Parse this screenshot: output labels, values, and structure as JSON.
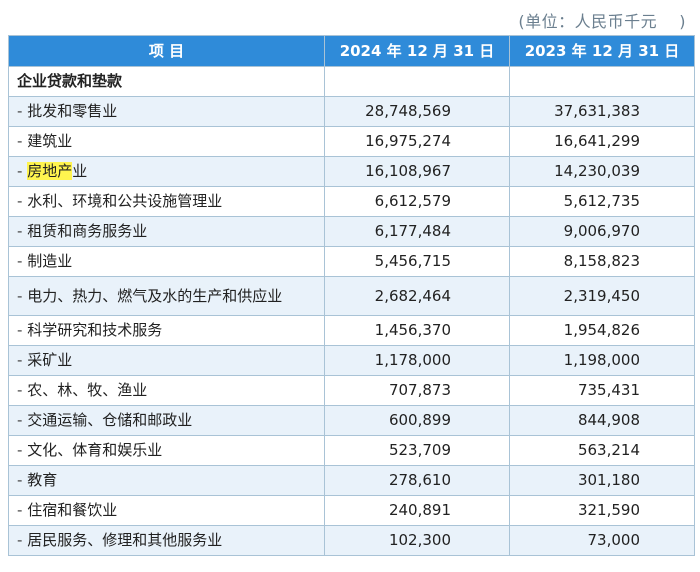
{
  "unit_note": "(单位：人民币千元　 )",
  "header": {
    "col_item": "项  目",
    "col_2024": "2024 年 12 月 31 日",
    "col_2023": "2023 年 12 月 31 日"
  },
  "section_title": "企业贷款和垫款",
  "rows": [
    {
      "prefix": "- ",
      "label": "批发和零售业",
      "v2024": "28,748,569",
      "v2023": "37,631,383"
    },
    {
      "prefix": "- ",
      "label": "建筑业",
      "v2024": "16,975,274",
      "v2023": "16,641,299"
    },
    {
      "prefix": "- ",
      "label_highlight": "房地产",
      "label_rest": "业",
      "v2024": "16,108,967",
      "v2023": "14,230,039"
    },
    {
      "prefix": "- ",
      "label": "水利、环境和公共设施管理业",
      "v2024": "6,612,579",
      "v2023": "5,612,735"
    },
    {
      "prefix": "- ",
      "label": "租赁和商务服务业",
      "v2024": "6,177,484",
      "v2023": "9,006,970"
    },
    {
      "prefix": "- ",
      "label": "制造业",
      "v2024": "5,456,715",
      "v2023": "8,158,823"
    },
    {
      "prefix": "- ",
      "label": "电力、热力、燃气及水的生产和供应业",
      "v2024": "2,682,464",
      "v2023": "2,319,450"
    },
    {
      "prefix": "- ",
      "label": "科学研究和技术服务",
      "v2024": "1,456,370",
      "v2023": "1,954,826"
    },
    {
      "prefix": "- ",
      "label": "采矿业",
      "v2024": "1,178,000",
      "v2023": "1,198,000"
    },
    {
      "prefix": "- ",
      "label": "农、林、牧、渔业",
      "v2024": "707,873",
      "v2023": "735,431"
    },
    {
      "prefix": "- ",
      "label": "交通运输、仓储和邮政业",
      "v2024": "600,899",
      "v2023": "844,908"
    },
    {
      "prefix": "- ",
      "label": "文化、体育和娱乐业",
      "v2024": "523,709",
      "v2023": "563,214"
    },
    {
      "prefix": "- ",
      "label": "教育",
      "v2024": "278,610",
      "v2023": "301,180"
    },
    {
      "prefix": "- ",
      "label": "住宿和餐饮业",
      "v2024": "240,891",
      "v2023": "321,590"
    },
    {
      "prefix": "- ",
      "label": "居民服务、修理和其他服务业",
      "v2024": "102,300",
      "v2023": "73,000"
    }
  ]
}
